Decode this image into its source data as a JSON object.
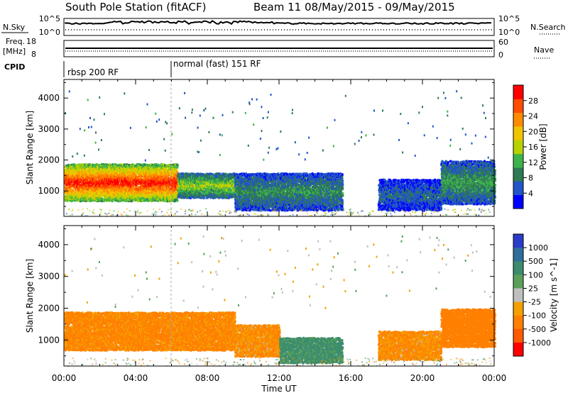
{
  "header": {
    "station": "South Pole Station (fitACF)",
    "beam": "Beam 11 08/May/2015 - 09/May/2015"
  },
  "strip": {
    "nsky_label": "N.Sky",
    "nsearch_label": "N.Search",
    "nsky_ticks": [
      "10^5",
      "10^0"
    ],
    "freq_label_1": "Freq.",
    "freq_label_2": "[MHz]",
    "freq_ticks": [
      "18",
      "8"
    ],
    "nave_ticks": [
      "60",
      "0"
    ],
    "nave_label": "Nave",
    "cpid_label": "CPID",
    "cpid_segments": [
      {
        "start_hour": 0,
        "label": "rbsp 200 RF"
      },
      {
        "start_hour": 6,
        "label": "normal (fast) 151 RF"
      }
    ]
  },
  "chart_data": [
    {
      "type": "heatmap",
      "quantity": "Power",
      "ylabel": "Slant Range [km]",
      "xlabel": "Time UT",
      "x_ticks": [
        "00:00",
        "04:00",
        "08:00",
        "12:00",
        "16:00",
        "20:00",
        "00:00"
      ],
      "xlim_hours": [
        0,
        24
      ],
      "y_ticks": [
        1000,
        2000,
        3000,
        4000
      ],
      "ylim": [
        180,
        4600
      ],
      "colorbar_label": "Power [dB]",
      "colorbar_ticks": [
        "28",
        "24",
        "20",
        "16",
        "12",
        "8",
        "4"
      ],
      "colorbar_colors": [
        "#0000ff",
        "#2255c8",
        "#2f7a54",
        "#3cb44b",
        "#b8d200",
        "#f0c400",
        "#ff8c00",
        "#ff4d00",
        "#ff0000"
      ],
      "echo_regions": [
        {
          "t0": 0.0,
          "t1": 6.3,
          "r0": 700,
          "r1": 1900,
          "level": 26
        },
        {
          "t0": 6.3,
          "t1": 9.5,
          "r0": 800,
          "r1": 1600,
          "level": 14
        },
        {
          "t0": 9.5,
          "t1": 15.5,
          "r0": 400,
          "r1": 1600,
          "level": 9
        },
        {
          "t0": 17.5,
          "t1": 21.0,
          "r0": 400,
          "r1": 1400,
          "level": 6
        },
        {
          "t0": 21.0,
          "t1": 24.0,
          "r0": 600,
          "r1": 2000,
          "level": 10
        }
      ]
    },
    {
      "type": "heatmap",
      "quantity": "Velocity",
      "ylabel": "Slant Range [km]",
      "xlabel": "Time UT",
      "x_ticks": [
        "00:00",
        "04:00",
        "08:00",
        "12:00",
        "16:00",
        "20:00",
        "00:00"
      ],
      "xlim_hours": [
        0,
        24
      ],
      "y_ticks": [
        1000,
        2000,
        3000,
        4000
      ],
      "ylim": [
        180,
        4600
      ],
      "colorbar_label": "Velocity [m s^-1]",
      "colorbar_ticks": [
        "1000",
        "500",
        "100",
        "25",
        "-25",
        "-100",
        "-500",
        "-1000"
      ],
      "colorbar_colors": [
        "#2a3cc8",
        "#2f6e9c",
        "#3c8c6e",
        "#5aa05a",
        "#bfbfbf",
        "#f5a000",
        "#ff8000",
        "#ff5a00",
        "#ff0000"
      ],
      "echo_regions": [
        {
          "t0": 0.0,
          "t1": 9.5,
          "r0": 700,
          "r1": 1900,
          "velocity": -150
        },
        {
          "t0": 9.5,
          "t1": 12.0,
          "r0": 500,
          "r1": 1500,
          "velocity": -120
        },
        {
          "t0": 12.0,
          "t1": 15.5,
          "r0": 300,
          "r1": 1100,
          "velocity": 150
        },
        {
          "t0": 17.5,
          "t1": 21.0,
          "r0": 400,
          "r1": 1300,
          "velocity": -120
        },
        {
          "t0": 21.0,
          "t1": 24.0,
          "r0": 800,
          "r1": 2000,
          "velocity": -200
        }
      ]
    }
  ]
}
